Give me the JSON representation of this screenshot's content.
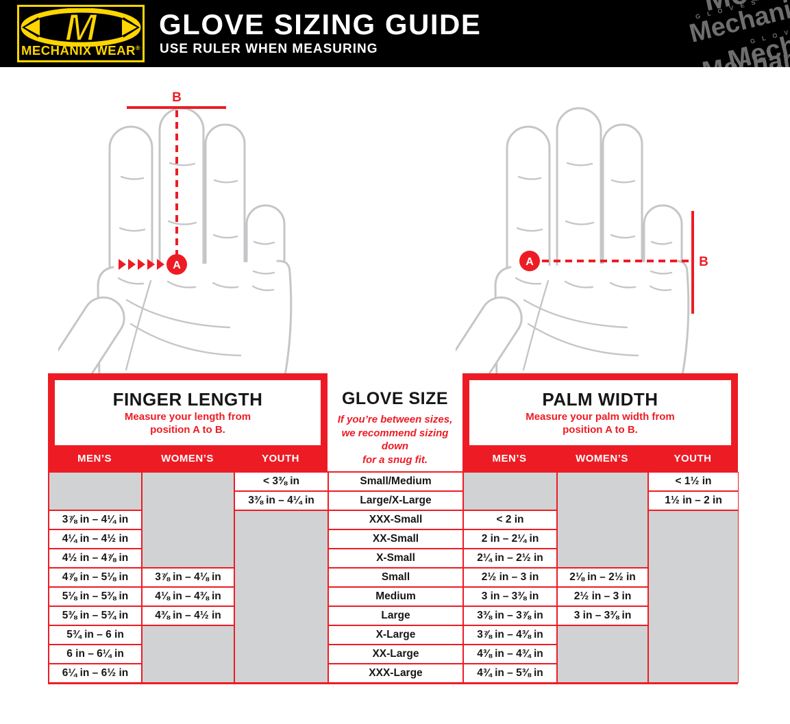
{
  "colors": {
    "red": "#ED1C24",
    "yellow": "#FFD600",
    "cellgray": "#D0D2D3",
    "handgray": "#C4C6C8",
    "wmgray": "#6E6E6E",
    "ink": "#161616"
  },
  "header": {
    "logo": {
      "brand": "MECHANIX WEAR",
      "registered": "®",
      "monogram": "M"
    },
    "title": "GLOVE SIZING GUIDE",
    "subtitle": "USE RULER WHEN MEASURING",
    "watermarks": [
      "Mechanix",
      "Mechanix®",
      "Mechanix",
      "Mechanix",
      "G L O V E S",
      "G L O V E S"
    ]
  },
  "diagram": {
    "left_hand": {
      "a_label": "A",
      "b_label": "B"
    },
    "right_hand": {
      "a_label": "A",
      "b_label": "B"
    }
  },
  "panels": {
    "finger_length": {
      "title": "FINGER LENGTH",
      "subtitle_lines": [
        "Measure your length from",
        "position A to B."
      ],
      "columns": [
        "MEN’S",
        "WOMEN’S",
        "YOUTH"
      ]
    },
    "glove_size": {
      "title": "GLOVE SIZE",
      "subtitle_lines": [
        "If you’re between sizes,",
        "we recommend sizing down",
        "for a snug fit."
      ]
    },
    "palm_width": {
      "title": "PALM WIDTH",
      "subtitle_lines": [
        "Measure your palm width from",
        "position A to B."
      ],
      "columns": [
        "MEN’S",
        "WOMEN’S",
        "YOUTH"
      ]
    }
  },
  "table": {
    "rows": 11,
    "columns": [
      {
        "id": "finger-length-mens",
        "cells": [
          {
            "e": 2
          },
          {
            "v": "3⅞ in – 4¼ in"
          },
          {
            "v": "4¼ in – 4½ in"
          },
          {
            "v": "4½ in – 4⅞ in"
          },
          {
            "v": "4⅞ in – 5⅛ in"
          },
          {
            "v": "5⅛ in – 5⅜ in"
          },
          {
            "v": "5⅜ in – 5¾ in"
          },
          {
            "v": "5¾ in – 6 in"
          },
          {
            "v": "6 in – 6¼ in"
          },
          {
            "v": "6¼ in – 6½ in"
          }
        ]
      },
      {
        "id": "finger-length-womens",
        "cells": [
          {
            "e": 5
          },
          {
            "v": "3⅞ in – 4⅛ in"
          },
          {
            "v": "4⅛ in – 4⅜ in"
          },
          {
            "v": "4⅜ in – 4½ in"
          },
          {
            "e": 3
          }
        ]
      },
      {
        "id": "finger-length-youth",
        "cells": [
          {
            "v": "< 3⅜ in"
          },
          {
            "v": "3⅜ in – 4¼ in"
          },
          {
            "e": 9
          }
        ]
      },
      {
        "id": "glove-size",
        "cells": [
          {
            "v": "Small/Medium"
          },
          {
            "v": "Large/X-Large"
          },
          {
            "v": "XXX-Small"
          },
          {
            "v": "XX-Small"
          },
          {
            "v": "X-Small"
          },
          {
            "v": "Small"
          },
          {
            "v": "Medium"
          },
          {
            "v": "Large"
          },
          {
            "v": "X-Large"
          },
          {
            "v": "XX-Large"
          },
          {
            "v": "XXX-Large"
          }
        ]
      },
      {
        "id": "palm-width-mens",
        "cells": [
          {
            "e": 2
          },
          {
            "v": "< 2 in"
          },
          {
            "v": "2 in – 2¼ in"
          },
          {
            "v": "2¼ in – 2½ in"
          },
          {
            "v": "2½ in – 3 in"
          },
          {
            "v": "3 in – 3⅜ in"
          },
          {
            "v": "3⅜ in – 3⅞ in"
          },
          {
            "v": "3⅞ in – 4⅜ in"
          },
          {
            "v": "4⅜ in – 4¾ in"
          },
          {
            "v": "4¾ in – 5⅜ in"
          }
        ]
      },
      {
        "id": "palm-width-womens",
        "cells": [
          {
            "e": 5
          },
          {
            "v": "2⅛ in – 2½ in"
          },
          {
            "v": "2½ in – 3 in"
          },
          {
            "v": "3 in – 3⅜ in"
          },
          {
            "e": 3
          }
        ]
      },
      {
        "id": "palm-width-youth",
        "cells": [
          {
            "v": "< 1½ in"
          },
          {
            "v": "1½ in – 2 in"
          },
          {
            "e": 9
          }
        ]
      }
    ]
  }
}
